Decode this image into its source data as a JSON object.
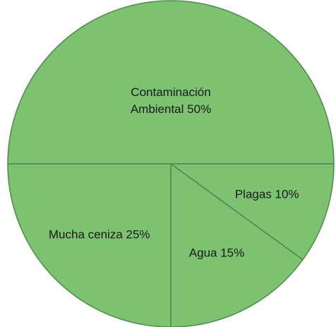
{
  "chart_data": {
    "type": "pie",
    "categories": [
      "Contaminación Ambiental",
      "Plagas",
      "Agua",
      "Mucha ceniza"
    ],
    "values": [
      50,
      10,
      15,
      25
    ],
    "value_labels": [
      "50%",
      "10%",
      "15%",
      "25%"
    ],
    "color": "#7cc270",
    "edge_color": "#4f8a4b"
  }
}
